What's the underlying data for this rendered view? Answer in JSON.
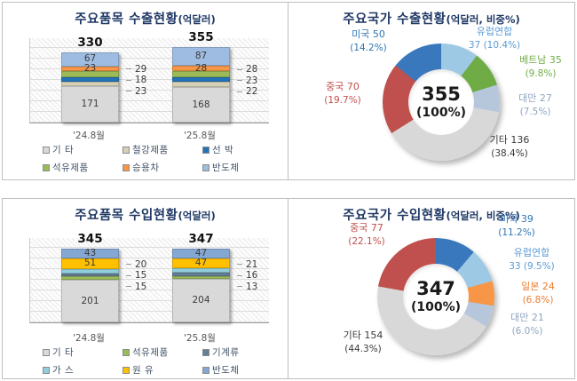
{
  "chart_data": [
    {
      "type": "bar",
      "stacked": true,
      "title": "주요품목 수출현황",
      "title_suffix": "(억달러)",
      "categories": [
        "'24.8월",
        "'25.8월"
      ],
      "totals": [
        "330",
        "355"
      ],
      "ylim": [
        0,
        400
      ],
      "grid": true,
      "series": [
        {
          "name": "기 타",
          "color": "#D9D9D9",
          "values": [
            171,
            168
          ],
          "label": "inside"
        },
        {
          "name": "철강제품",
          "color": "#D6D0B7",
          "values": [
            23,
            22
          ],
          "label": "side"
        },
        {
          "name": "선 박",
          "color": "#2273BA",
          "values": [
            18,
            23
          ],
          "label": "side"
        },
        {
          "name": "석유제품",
          "color": "#9BBB59",
          "values": [
            29,
            28
          ],
          "label": "side"
        },
        {
          "name": "승용차",
          "color": "#F79646",
          "values": [
            23,
            28
          ],
          "label": "inside"
        },
        {
          "name": "반도체",
          "color": "#9EBCE2",
          "values": [
            67,
            87
          ],
          "label": "inside"
        }
      ],
      "legend_position": "bottom"
    },
    {
      "type": "donut",
      "title": "주요국가 수출현황",
      "title_suffix": "(억달러, 비중%)",
      "center_value": "355",
      "center_pct": "(100%)",
      "start_angle_deg": 0,
      "slices": [
        {
          "name": "유럽연합",
          "value": 37,
          "pct": 10.4,
          "color": "#9DC9E4",
          "label_color": "#5B9BD5",
          "line1": "유럽연합",
          "line2": "37 (10.4%)"
        },
        {
          "name": "베트남",
          "value": 35,
          "pct": 9.8,
          "color": "#6FAC46",
          "label_color": "#70AD47",
          "line1": "베트남 35",
          "line2": "(9.8%)"
        },
        {
          "name": "대만",
          "value": 27,
          "pct": 7.5,
          "color": "#B7C7DB",
          "label_color": "#8FA5BF",
          "line1": "대만 27",
          "line2": "(7.5%)"
        },
        {
          "name": "기타",
          "value": 136,
          "pct": 38.4,
          "color": "#D8D8D8",
          "label_color": "#3A3A3A",
          "line1": "기타 136",
          "line2": "(38.4%)"
        },
        {
          "name": "중국",
          "value": 70,
          "pct": 19.7,
          "color": "#C0504D",
          "label_color": "#C0504D",
          "line1": "중국 70",
          "line2": "(19.7%)"
        },
        {
          "name": "미국",
          "value": 50,
          "pct": 14.2,
          "color": "#3978BC",
          "label_color": "#2E75B6",
          "line1": "미국 50",
          "line2": "(14.2%)"
        }
      ]
    },
    {
      "type": "bar",
      "stacked": true,
      "title": "주요품목 수입현황",
      "title_suffix": "(억달러)",
      "categories": [
        "'24.8월",
        "'25.8월"
      ],
      "totals": [
        "345",
        "347"
      ],
      "ylim": [
        0,
        400
      ],
      "grid": true,
      "series": [
        {
          "name": "기 타",
          "color": "#D9D9D9",
          "values": [
            201,
            204
          ],
          "label": "inside"
        },
        {
          "name": "석유제품",
          "color": "#9BBB59",
          "values": [
            15,
            13
          ],
          "label": "side"
        },
        {
          "name": "기계류",
          "color": "#647F98",
          "values": [
            15,
            16
          ],
          "label": "side"
        },
        {
          "name": "가 스",
          "color": "#92CDDC",
          "values": [
            20,
            21
          ],
          "label": "side"
        },
        {
          "name": "원 유",
          "color": "#FFC000",
          "values": [
            51,
            47
          ],
          "label": "inside"
        },
        {
          "name": "반도체",
          "color": "#84A7D4",
          "values": [
            43,
            47
          ],
          "label": "inside"
        }
      ],
      "legend_position": "bottom"
    },
    {
      "type": "donut",
      "title": "주요국가 수입현황",
      "title_suffix": "(억달러, 비중%)",
      "center_value": "347",
      "center_pct": "(100%)",
      "start_angle_deg": 0,
      "slices": [
        {
          "name": "미국",
          "value": 39,
          "pct": 11.2,
          "color": "#3978BC",
          "label_color": "#2E75B6",
          "line1": "미국 39",
          "line2": "(11.2%)"
        },
        {
          "name": "유럽연합",
          "value": 33,
          "pct": 9.5,
          "color": "#9DC9E4",
          "label_color": "#5B9BD5",
          "line1": "유럽연합",
          "line2": "33 (9.5%)"
        },
        {
          "name": "일본",
          "value": 24,
          "pct": 6.8,
          "color": "#F79646",
          "label_color": "#ED7D31",
          "line1": "일본 24",
          "line2": "(6.8%)"
        },
        {
          "name": "대만",
          "value": 21,
          "pct": 6.0,
          "color": "#B7C7DB",
          "label_color": "#8FA5BF",
          "line1": "대만 21",
          "line2": "(6.0%)"
        },
        {
          "name": "기타",
          "value": 154,
          "pct": 44.3,
          "color": "#D8D8D8",
          "label_color": "#3A3A3A",
          "line1": "기타 154",
          "line2": "(44.3%)"
        },
        {
          "name": "중국",
          "value": 77,
          "pct": 22.1,
          "color": "#C0504D",
          "label_color": "#C0504D",
          "line1": "중국 77",
          "line2": "(22.1%)"
        }
      ]
    }
  ]
}
